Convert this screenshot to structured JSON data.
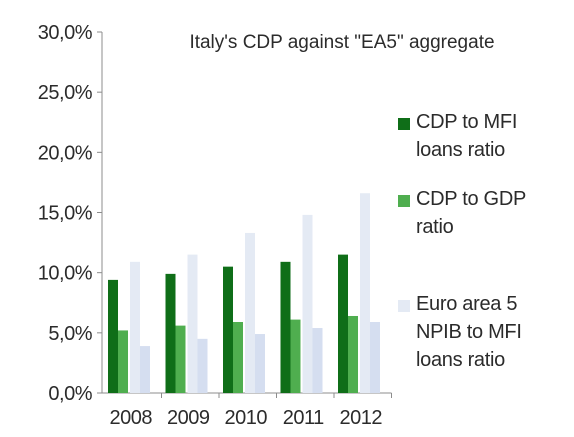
{
  "chart_data": {
    "type": "bar",
    "title": "Italy's CDP against \"EA5\" aggregate",
    "xlabel": "",
    "ylabel": "",
    "categories": [
      "2008",
      "2009",
      "2010",
      "2011",
      "2012"
    ],
    "ylim": [
      0,
      30
    ],
    "y_ticks": [
      "0,0%",
      "5,0%",
      "10,0%",
      "15,0%",
      "20,0%",
      "25,0%",
      "30,0%"
    ],
    "grid": false,
    "legend_position": "right",
    "series": [
      {
        "name": "CDP to MFI loans ratio",
        "color": "#0f6e18",
        "values": [
          9.4,
          9.9,
          10.5,
          10.9,
          11.5
        ]
      },
      {
        "name": "CDP to GDP ratio",
        "color": "#4fae4f",
        "values": [
          5.2,
          5.6,
          5.9,
          6.1,
          6.4
        ]
      },
      {
        "name": "Euro area 5 NPIB to MFI loans ratio",
        "color": "#e4eaf4",
        "values": [
          10.9,
          11.5,
          13.3,
          14.8,
          16.6
        ]
      },
      {
        "name": "",
        "color": "#d5def0",
        "values": [
          3.9,
          4.5,
          4.9,
          5.4,
          5.9
        ]
      }
    ]
  }
}
